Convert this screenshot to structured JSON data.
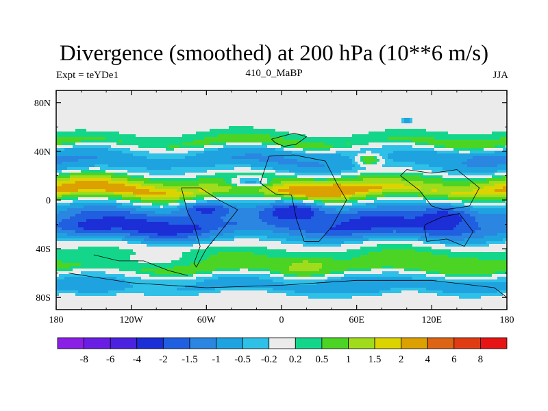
{
  "chart_data": {
    "type": "heatmap",
    "title": "Divergence (smoothed) at 200 hPa (10**6 m/s)",
    "left_label": "Expt = teYDe1",
    "center_label": "410_0_MaBP",
    "right_label": "JJA",
    "x_ticks": [
      {
        "value": -180,
        "label": "180"
      },
      {
        "value": -120,
        "label": "120W"
      },
      {
        "value": -60,
        "label": "60W"
      },
      {
        "value": 0,
        "label": "0"
      },
      {
        "value": 60,
        "label": "60E"
      },
      {
        "value": 120,
        "label": "120E"
      },
      {
        "value": 180,
        "label": "180"
      }
    ],
    "y_ticks": [
      {
        "value": 80,
        "label": "80N"
      },
      {
        "value": 40,
        "label": "40N"
      },
      {
        "value": 0,
        "label": "0"
      },
      {
        "value": -40,
        "label": "40S"
      },
      {
        "value": -80,
        "label": "80S"
      }
    ],
    "xlim": [
      -180,
      180
    ],
    "ylim": [
      -90,
      90
    ],
    "colorbar": {
      "colors": [
        "#8a1fe6",
        "#6a1ee3",
        "#4a22e0",
        "#1c2ed6",
        "#1f5fe0",
        "#2a86e0",
        "#1ea3e0",
        "#2ec0e6",
        "#ebebeb",
        "#14d68a",
        "#4cd424",
        "#a0dc1c",
        "#dcd400",
        "#dca000",
        "#dc6414",
        "#e03c14",
        "#e61414"
      ],
      "levels": [
        "-8",
        "-6",
        "-4",
        "-2",
        "-1.5",
        "-1",
        "-0.5",
        "-0.2",
        "0.2",
        "0.5",
        "1",
        "1.5",
        "2",
        "4",
        "6",
        "8"
      ]
    },
    "field_bands": [
      {
        "lat": 85,
        "v": 0
      },
      {
        "lat": 62,
        "v": 0
      },
      {
        "lat": 54,
        "v": 0.3
      },
      {
        "lat": 47,
        "v": 0.8
      },
      {
        "lat": 40,
        "v": -0.6
      },
      {
        "lat": 32,
        "v": -1.1
      },
      {
        "lat": 24,
        "v": -0.4
      },
      {
        "lat": 15,
        "v": 1.4
      },
      {
        "lat": 8,
        "v": 2.6
      },
      {
        "lat": 2,
        "v": 0.9
      },
      {
        "lat": -4,
        "v": -0.4
      },
      {
        "lat": -12,
        "v": -1.6
      },
      {
        "lat": -22,
        "v": -2.3
      },
      {
        "lat": -30,
        "v": -1.2
      },
      {
        "lat": -37,
        "v": 0.05
      },
      {
        "lat": -46,
        "v": 0.6
      },
      {
        "lat": -56,
        "v": 0.9
      },
      {
        "lat": -64,
        "v": -0.4
      },
      {
        "lat": -72,
        "v": -0.7
      },
      {
        "lat": -80,
        "v": 0.1
      },
      {
        "lat": -90,
        "v": 0
      }
    ],
    "field_blobs": [
      {
        "lon": 30,
        "lat": 8,
        "rx": 14,
        "ry": 4,
        "v": 3.0
      },
      {
        "lon": 45,
        "lat": 9,
        "rx": 6,
        "ry": 3,
        "v": 3.2
      },
      {
        "lon": 10,
        "lat": -10,
        "rx": 25,
        "ry": 8,
        "v": -2.6
      },
      {
        "lon": -60,
        "lat": -8,
        "rx": 20,
        "ry": 6,
        "v": -2.2
      },
      {
        "lon": 130,
        "lat": -15,
        "rx": 25,
        "ry": 10,
        "v": -2.4
      },
      {
        "lon": -150,
        "lat": -22,
        "rx": 22,
        "ry": 6,
        "v": -2.2
      },
      {
        "lon": -25,
        "lat": 15,
        "rx": 20,
        "ry": 6,
        "v": -0.6
      },
      {
        "lon": 70,
        "lat": 33,
        "rx": 10,
        "ry": 5,
        "v": 0.9
      },
      {
        "lon": 160,
        "lat": 32,
        "rx": 14,
        "ry": 5,
        "v": -1.2
      },
      {
        "lon": -100,
        "lat": -48,
        "rx": 40,
        "ry": 8,
        "v": 0.1
      },
      {
        "lon": 20,
        "lat": -55,
        "rx": 20,
        "ry": 7,
        "v": 1.3
      },
      {
        "lon": 60,
        "lat": -70,
        "rx": 30,
        "ry": 8,
        "v": -1.0
      },
      {
        "lon": -150,
        "lat": -70,
        "rx": 25,
        "ry": 8,
        "v": -0.9
      },
      {
        "lon": 100,
        "lat": 65,
        "rx": 5,
        "ry": 3,
        "v": -0.7
      }
    ]
  }
}
